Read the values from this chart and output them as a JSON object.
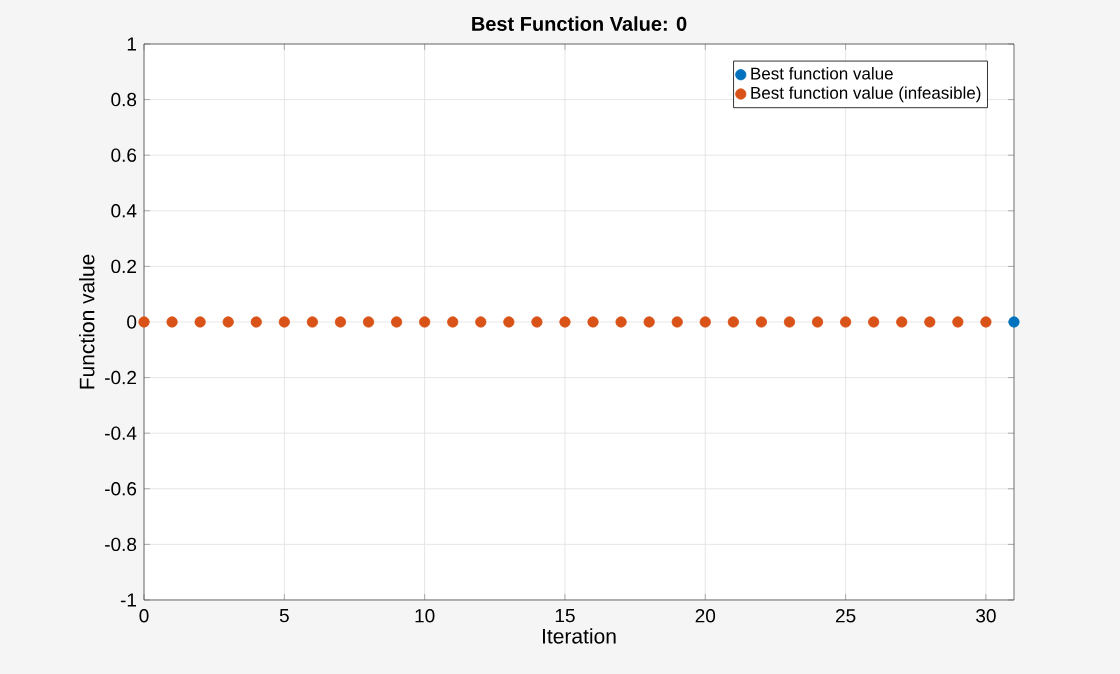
{
  "chart_data": {
    "type": "scatter",
    "title": "Best Function Value: 0",
    "xlabel": "Iteration",
    "ylabel": "Function value",
    "xlim": [
      0,
      31
    ],
    "xticks": [
      0,
      5,
      10,
      15,
      20,
      25,
      30
    ],
    "ylim": [
      -1,
      1
    ],
    "yticks": [
      -1,
      -0.8,
      -0.6,
      -0.4,
      -0.2,
      0,
      0.2,
      0.4,
      0.6,
      0.8,
      1
    ],
    "grid": true,
    "legend": "top right",
    "marker": "circle",
    "series": [
      {
        "name": "Best function value",
        "color": "#0072bd",
        "x": [
          31
        ],
        "values": [
          0
        ]
      },
      {
        "name": "Best function value (infeasible)",
        "color": "#d95319",
        "x": [
          0,
          1,
          2,
          3,
          4,
          5,
          6,
          7,
          8,
          9,
          10,
          11,
          12,
          13,
          14,
          15,
          16,
          17,
          18,
          19,
          20,
          21,
          22,
          23,
          24,
          25,
          26,
          27,
          28,
          29,
          30
        ],
        "values": [
          0,
          0,
          0,
          0,
          0,
          0,
          0,
          0,
          0,
          0,
          0,
          0,
          0,
          0,
          0,
          0,
          0,
          0,
          0,
          0,
          0,
          0,
          0,
          0,
          0,
          0,
          0,
          0,
          0,
          0,
          0
        ]
      }
    ]
  }
}
